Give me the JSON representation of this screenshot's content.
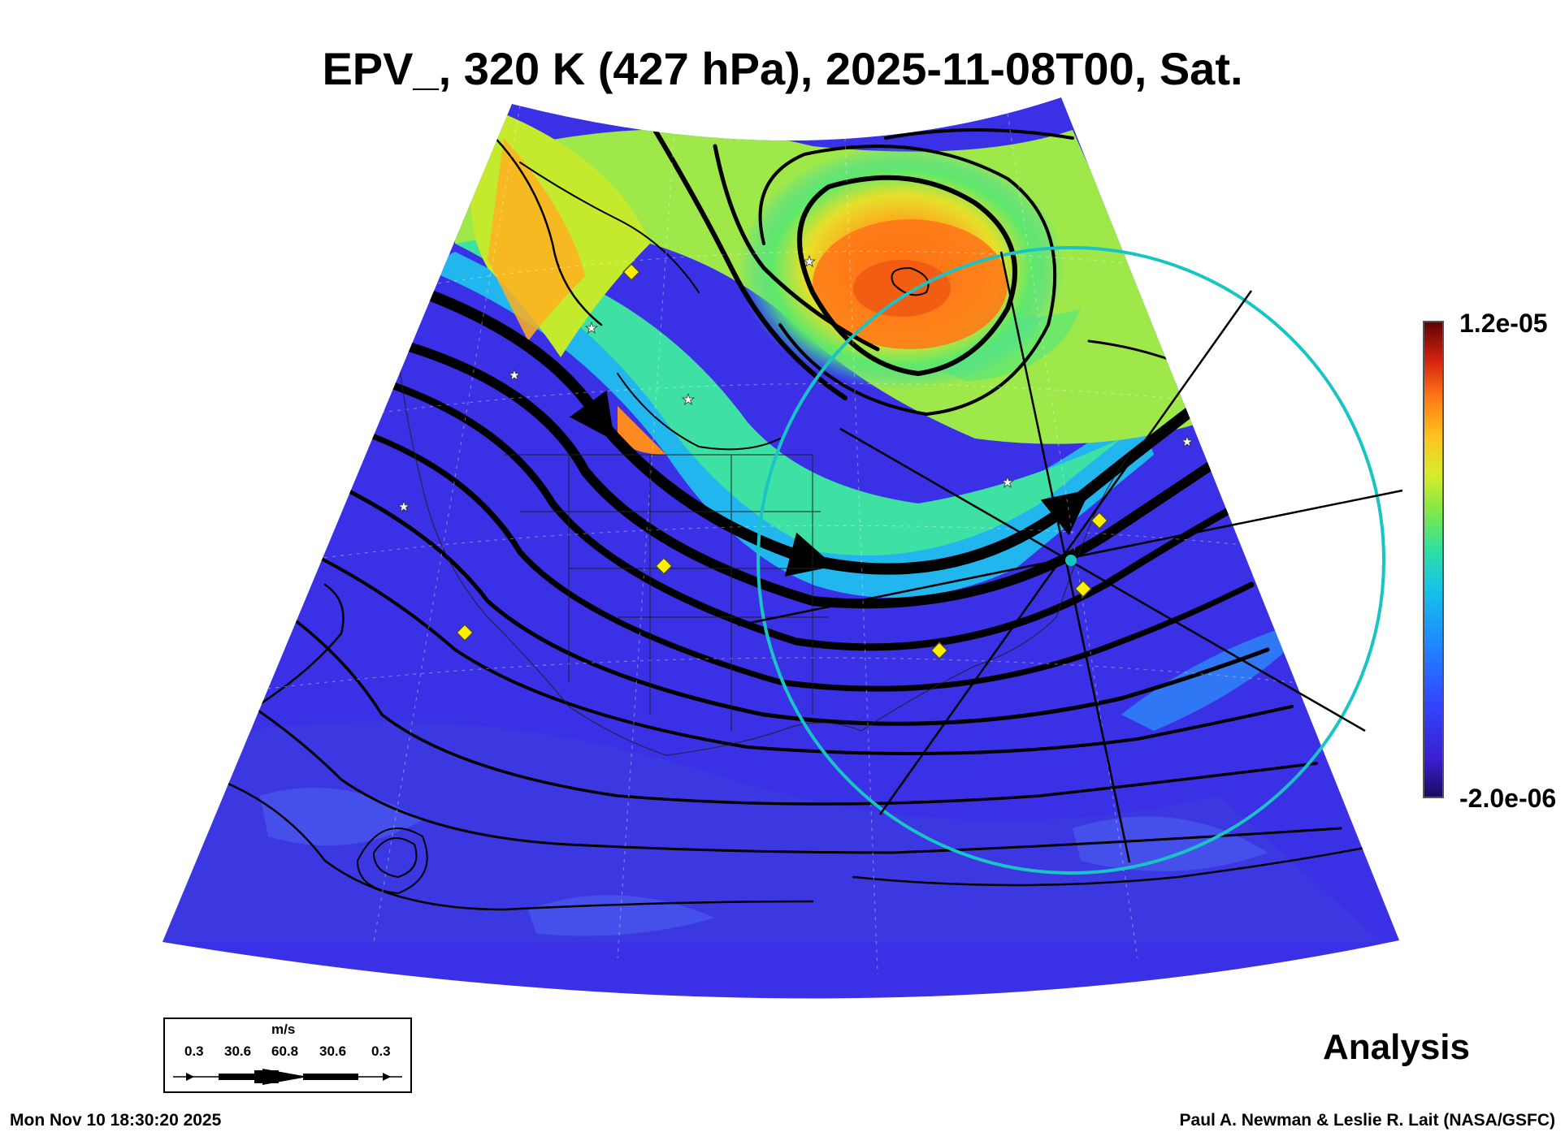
{
  "title": "EPV_, 320 K (427 hPa), 2025-11-08T00, Sat.",
  "colorbar": {
    "max_label": "1.2e-05",
    "min_label": "-2.0e-06",
    "colors": [
      "#2b0a7a",
      "#3a1fd0",
      "#3347ff",
      "#1f86ff",
      "#16c4e8",
      "#2de0a0",
      "#7fe84a",
      "#d8ec2a",
      "#ffc21e",
      "#ff7a18",
      "#e02a12",
      "#8a0808",
      "#5a0404"
    ]
  },
  "legend": {
    "unit": "m/s",
    "speed_labels": [
      "0.3",
      "30.6",
      "60.8",
      "30.6",
      "0.3"
    ]
  },
  "label_analysis": "Analysis",
  "timestamp": "Mon Nov 10 18:30:20 2025",
  "credit": "Paul A. Newman & Leslie R. Lait (NASA/GSFC)",
  "map_colors": {
    "background_low": "#3a2ee8",
    "ridge_high": "#ff8a1c",
    "ring": "#19c4c4",
    "marker_diamond": "#ffee00",
    "marker_star": "#ffffff"
  }
}
